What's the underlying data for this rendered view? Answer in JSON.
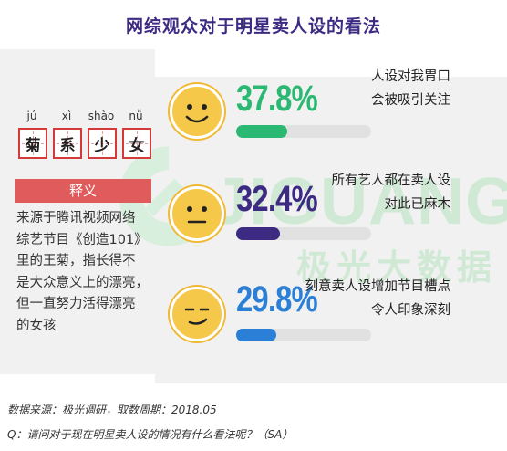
{
  "title": "网综观众对于明星卖人设的看法",
  "left_panel": {
    "pinyin": [
      "jú",
      "xì",
      "shào",
      "nǚ"
    ],
    "chars": [
      "菊",
      "系",
      "少",
      "女"
    ],
    "definition_heading": "释义",
    "definition_lines": [
      "来源于腾讯视频网络",
      "综艺节目《创造101》",
      "里的王菊，指长得不",
      "是大众意义上的漂亮，",
      "但一直努力活得漂亮",
      "的女孩"
    ]
  },
  "watermark": {
    "en": "JIGUANG",
    "cn": "极光大数据"
  },
  "chart_data": {
    "type": "bar",
    "title": "网综观众对于明星卖人设的看法",
    "unit": "%",
    "xlim": [
      0,
      100
    ],
    "categories": [
      "人设对我胃口 会被吸引关注",
      "所有艺人都在卖人设 对此已麻木",
      "刻意卖人设增加节目槽点 令人印象深刻"
    ],
    "values": [
      37.8,
      32.4,
      29.8
    ],
    "items": [
      {
        "value": 37.8,
        "display": "37.8%",
        "label_line1": "人设对我胃口",
        "label_line2": "会被吸引关注",
        "color": "#2bb873",
        "face": "smile"
      },
      {
        "value": 32.4,
        "display": "32.4%",
        "label_line1": "所有艺人都在卖人设",
        "label_line2": "对此已麻木",
        "color": "#3d2a82",
        "face": "neutral"
      },
      {
        "value": 29.8,
        "display": "29.8%",
        "label_line1": "刻意卖人设增加节目槽点",
        "label_line2": "令人印象深刻",
        "color": "#2b7fd6",
        "face": "smirk"
      }
    ]
  },
  "footer": {
    "source": "数据来源：极光调研，取数周期：2018.05",
    "question": "Q：请问对于现在明星卖人设的情况有什么看法呢？（SA）"
  }
}
